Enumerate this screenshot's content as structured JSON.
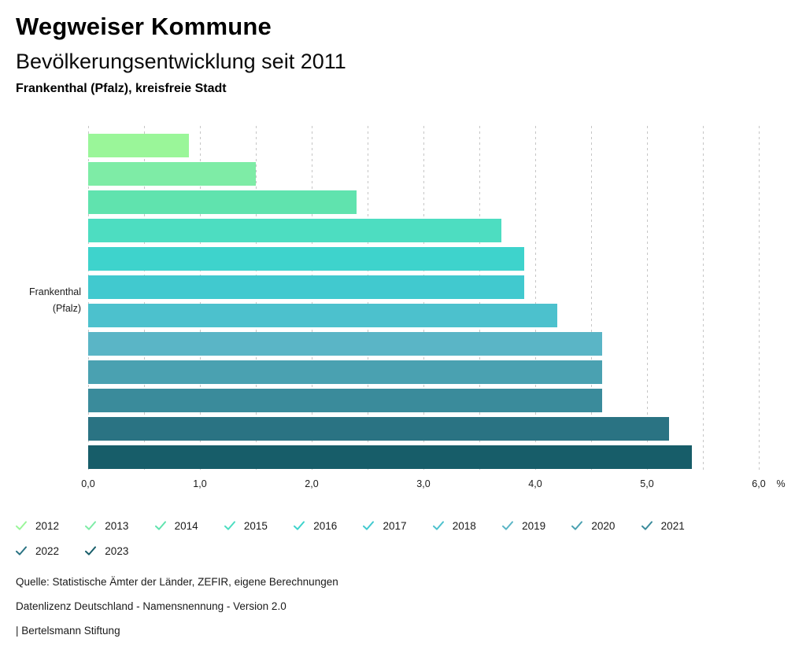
{
  "header": {
    "title": "Wegweiser Kommune",
    "subtitle": "Bevölkerungsentwicklung seit 2011",
    "region": "Frankenthal (Pfalz), kreisfreie Stadt"
  },
  "chart_data": {
    "type": "bar",
    "orientation": "horizontal",
    "title": "Bevölkerungsentwicklung seit 2011",
    "group_label_lines": [
      "Frankenthal",
      "(Pfalz)"
    ],
    "categories": [
      "2012",
      "2013",
      "2014",
      "2015",
      "2016",
      "2017",
      "2018",
      "2019",
      "2020",
      "2021",
      "2022",
      "2023"
    ],
    "values": [
      0.9,
      1.5,
      2.4,
      3.7,
      3.9,
      3.9,
      4.2,
      4.6,
      4.6,
      4.6,
      5.2,
      5.4
    ],
    "colors": [
      "#9af699",
      "#7eeca6",
      "#60e3ae",
      "#4dddc1",
      "#3ed3cc",
      "#41c9cf",
      "#4cc1cd",
      "#5ab5c6",
      "#4aa1b1",
      "#3a8b9b",
      "#2a7383",
      "#175d69"
    ],
    "unit": "%",
    "xlim": [
      0,
      6
    ],
    "grid_step": 0.5,
    "x_tick_labels": [
      "0,0",
      "1,0",
      "2,0",
      "3,0",
      "4,0",
      "5,0",
      "6,0"
    ],
    "x_tick_values": [
      0,
      1,
      2,
      3,
      4,
      5,
      6
    ],
    "grid": true,
    "legend_position": "bottom",
    "gridline_color": "#c6c6c6"
  },
  "footer": {
    "source": "Quelle: Statistische Ämter der Länder, ZEFIR, eigene Berechnungen",
    "license": "Datenlizenz Deutschland - Namensnennung - Version 2.0",
    "publisher": "| Bertelsmann Stiftung"
  }
}
